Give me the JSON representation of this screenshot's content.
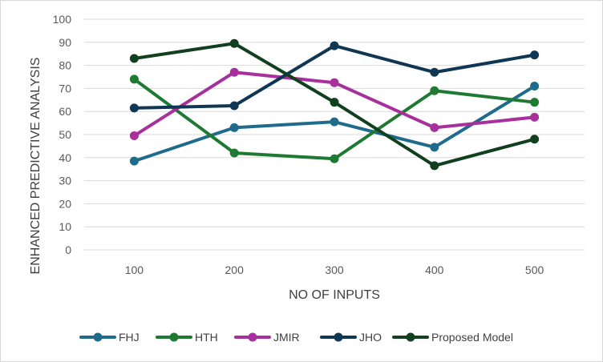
{
  "chart_data": {
    "type": "line",
    "title": "",
    "xlabel": "NO OF INPUTS",
    "ylabel": "ENHANCED PREDICTIVE ANALYSIS",
    "categories": [
      "100",
      "200",
      "300",
      "400",
      "500"
    ],
    "ylim": [
      0,
      100
    ],
    "yticks": [
      0,
      10,
      20,
      30,
      40,
      50,
      60,
      70,
      80,
      90,
      100
    ],
    "grid": true,
    "legend_position": "bottom",
    "series": [
      {
        "name": "FHJ",
        "color": "#1f6b8c",
        "values": [
          38.5,
          53,
          55.5,
          44.5,
          71
        ]
      },
      {
        "name": "HTH",
        "color": "#1e7a32",
        "values": [
          74,
          42,
          39.5,
          69,
          64
        ]
      },
      {
        "name": "JMIR",
        "color": "#a8309c",
        "values": [
          49.5,
          77,
          72.5,
          53,
          57.5
        ]
      },
      {
        "name": "JHO",
        "color": "#0f3652",
        "values": [
          61.5,
          62.5,
          88.5,
          77,
          84.5
        ]
      },
      {
        "name": "Proposed Model",
        "color": "#11401e",
        "values": [
          83,
          89.5,
          64,
          36.5,
          48
        ]
      }
    ]
  }
}
